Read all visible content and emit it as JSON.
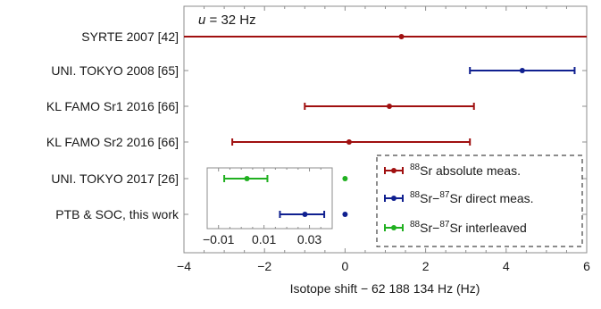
{
  "chart_data": {
    "type": "errorbar",
    "annotation": "u = 32 Hz",
    "xlabel": "Isotope shift − 62 188 134 Hz (Hz)",
    "xlim": [
      -4,
      6
    ],
    "xticks": [
      -4,
      -2,
      0,
      2,
      4,
      6
    ],
    "xtick_labels": [
      "−4",
      "−2",
      "0",
      "2",
      "4",
      "6"
    ],
    "categories": [
      "SYRTE 2007 [42]",
      "UNI. TOKYO 2008 [65]",
      "KL FAMO Sr1 2016 [66]",
      "KL FAMO Sr2 2016 [66]",
      "UNI. TOKYO 2017 [26]",
      "PTB & SOC, this work"
    ],
    "points": [
      {
        "category": "SYRTE 2007 [42]",
        "value": 1.4,
        "low": -4.0,
        "high": 6.0,
        "series": 0
      },
      {
        "category": "UNI. TOKYO 2008 [65]",
        "value": 4.4,
        "low": 3.1,
        "high": 5.7,
        "series": 1
      },
      {
        "category": "KL FAMO Sr1 2016 [66]",
        "value": 1.1,
        "low": -1.0,
        "high": 3.2,
        "series": 0
      },
      {
        "category": "KL FAMO Sr2 2016 [66]",
        "value": 0.1,
        "low": -2.8,
        "high": 3.1,
        "series": 0
      },
      {
        "category": "UNI. TOKYO 2017 [26]",
        "value": 0.0,
        "low": 0.0,
        "high": 0.0,
        "series": 2
      },
      {
        "category": "PTB & SOC, this work",
        "value": 0.0,
        "low": 0.0,
        "high": 0.0,
        "series": 1
      }
    ],
    "series": [
      {
        "name": "88Sr absolute meas.",
        "color": "#a01010"
      },
      {
        "name": "88Sr−87Sr direct meas.",
        "color": "#102090"
      },
      {
        "name": "88Sr−87Sr interleaved",
        "color": "#20b020"
      }
    ],
    "legend": {
      "position": "bottom-right",
      "items": [
        {
          "sup": "88",
          "text": "Sr absolute meas."
        },
        {
          "sup": "88",
          "mid": "Sr−",
          "sup2": "87",
          "text": "Sr direct meas."
        },
        {
          "sup": "88",
          "mid": "Sr−",
          "sup2": "87",
          "text": "Sr interleaved"
        }
      ]
    },
    "inset": {
      "xlim": [
        -0.015,
        0.04
      ],
      "xticks": [
        -0.01,
        0.01,
        0.03
      ],
      "xtick_labels": [
        "−0.01",
        "0.01",
        "0.03"
      ],
      "points": [
        {
          "value": 0.0025,
          "low": -0.0075,
          "high": 0.0115,
          "series": 2
        },
        {
          "value": 0.028,
          "low": 0.017,
          "high": 0.0365,
          "series": 1
        }
      ]
    }
  }
}
